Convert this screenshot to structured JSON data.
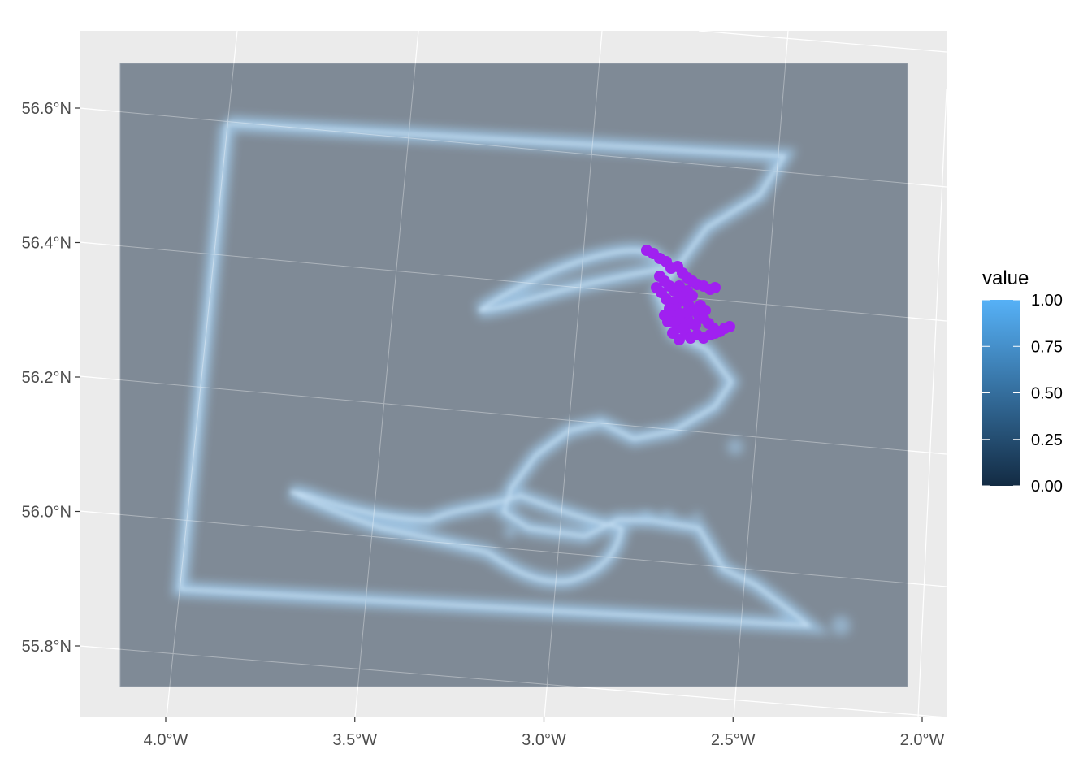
{
  "chart_data": {
    "type": "heatmap",
    "description_kind": "raster map",
    "x_axis": {
      "ticks": [
        {
          "value": -4.0,
          "label": "4.0°W"
        },
        {
          "value": -3.5,
          "label": "3.5°W"
        },
        {
          "value": -3.0,
          "label": "3.0°W"
        },
        {
          "value": -2.5,
          "label": "2.5°W"
        },
        {
          "value": -2.0,
          "label": "2.0°W"
        }
      ]
    },
    "y_axis": {
      "ticks": [
        {
          "value": 55.8,
          "label": "55.8°N"
        },
        {
          "value": 56.0,
          "label": "56.0°N"
        },
        {
          "value": 56.2,
          "label": "56.2°N"
        },
        {
          "value": 56.4,
          "label": "56.4°N"
        },
        {
          "value": 56.6,
          "label": "56.6°N"
        }
      ]
    },
    "legend": {
      "title": "value",
      "position": "right",
      "range": [
        0,
        1
      ],
      "ticks": [
        {
          "value": 1.0,
          "label": "1.00"
        },
        {
          "value": 0.75,
          "label": "0.75"
        },
        {
          "value": 0.5,
          "label": "0.50"
        },
        {
          "value": 0.25,
          "label": "0.25"
        },
        {
          "value": 0.0,
          "label": "0.00"
        }
      ],
      "gradient": [
        "#132B43",
        "#56B1F7"
      ]
    },
    "colors": {
      "panel_background": "#EBEBEB",
      "grid": "#FFFFFF",
      "raster_fill": "#7F8A96",
      "edge_glow": "#9CCBF2",
      "points": "#A020F0"
    },
    "grid": true,
    "points_series": "purple track points (Firth of Tay area)"
  }
}
